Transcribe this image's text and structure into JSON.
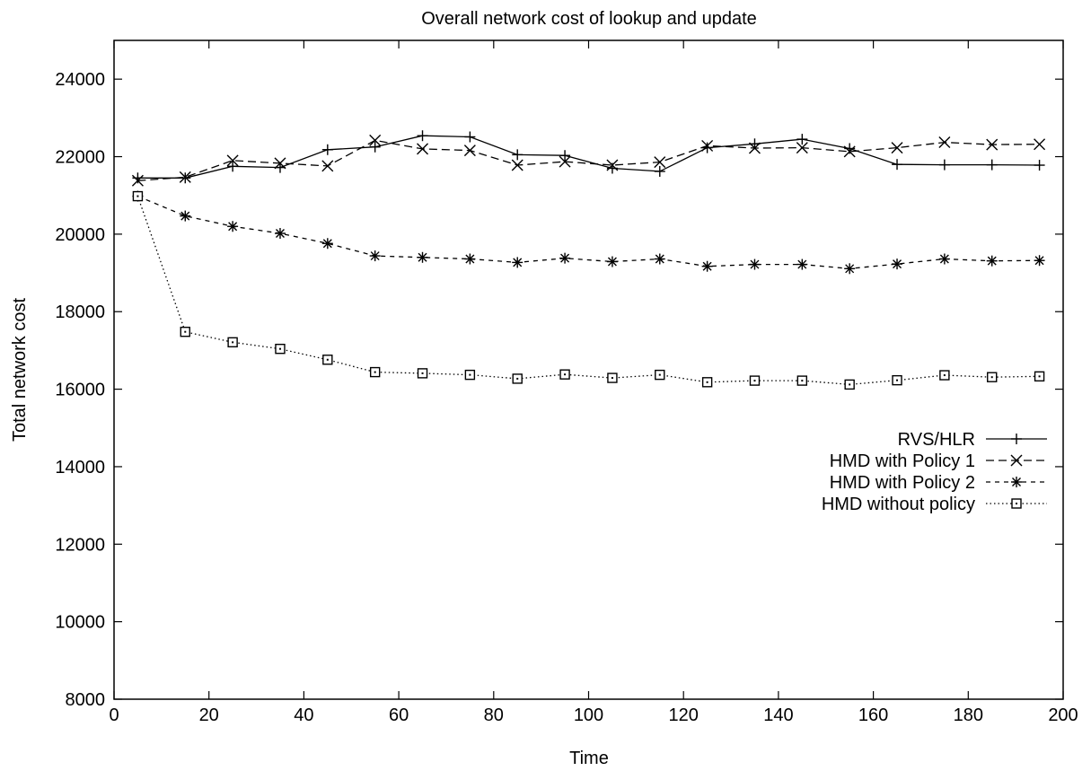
{
  "chart_data": {
    "type": "line",
    "title": "Overall network cost of lookup and update",
    "xlabel": "Time",
    "ylabel": "Total network cost",
    "xlim": [
      0,
      200
    ],
    "ylim": [
      8000,
      25000
    ],
    "xticks": [
      0,
      20,
      40,
      60,
      80,
      100,
      120,
      140,
      160,
      180,
      200
    ],
    "yticks": [
      8000,
      10000,
      12000,
      14000,
      16000,
      18000,
      20000,
      22000,
      24000
    ],
    "xtick_labels": [
      "0",
      "20",
      "40",
      "60",
      "80",
      "100",
      "120",
      "140",
      "160",
      "180",
      "200"
    ],
    "ytick_labels": [
      "8000",
      "10000",
      "12000",
      "14000",
      "16000",
      "18000",
      "20000",
      "22000",
      "24000"
    ],
    "grid": false,
    "legend_position": "right",
    "x": [
      5,
      15,
      25,
      35,
      45,
      55,
      65,
      75,
      85,
      95,
      105,
      115,
      125,
      135,
      145,
      155,
      165,
      175,
      185,
      195
    ],
    "series": [
      {
        "name": "RVS/HLR",
        "marker": "plus",
        "dash": "solid",
        "values": [
          21450,
          21450,
          21750,
          21720,
          22180,
          22250,
          22540,
          22510,
          22050,
          22030,
          21700,
          21620,
          22230,
          22330,
          22450,
          22210,
          21800,
          21790,
          21790,
          21780
        ]
      },
      {
        "name": "HMD with Policy 1",
        "marker": "cross",
        "dash": "dashed",
        "values": [
          21380,
          21470,
          21900,
          21830,
          21760,
          22420,
          22200,
          22160,
          21780,
          21870,
          21780,
          21860,
          22280,
          22220,
          22230,
          22130,
          22230,
          22370,
          22310,
          22320
        ]
      },
      {
        "name": "HMD with Policy 2",
        "marker": "asterisk",
        "dash": "short-dashed",
        "values": [
          20980,
          20470,
          20200,
          20020,
          19760,
          19440,
          19400,
          19360,
          19270,
          19380,
          19290,
          19360,
          19170,
          19220,
          19220,
          19110,
          19230,
          19360,
          19310,
          19320
        ]
      },
      {
        "name": "HMD without policy",
        "marker": "square",
        "dash": "dotted",
        "values": [
          20980,
          17480,
          17210,
          17040,
          16760,
          16440,
          16410,
          16370,
          16270,
          16380,
          16290,
          16370,
          16180,
          16220,
          16220,
          16120,
          16230,
          16360,
          16310,
          16330
        ]
      }
    ]
  }
}
